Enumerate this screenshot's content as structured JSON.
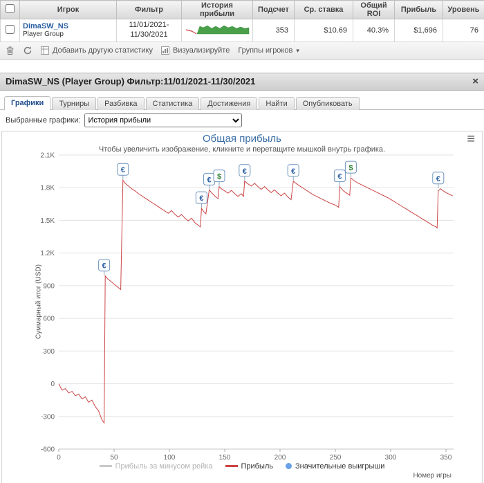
{
  "table": {
    "headers": [
      "Игрок",
      "Фильтр",
      "История прибыли",
      "Подсчет",
      "Ср. ставка",
      "Общий ROI",
      "Прибыль",
      "Уровень"
    ],
    "row": {
      "player_name": "DimaSW_NS",
      "player_type": "Player Group",
      "filter_from": "11/01/2021-",
      "filter_to": "11/30/2021",
      "count": "353",
      "avg_stake": "$10.69",
      "total_roi": "40.3%",
      "profit": "$1,696",
      "level": "76"
    }
  },
  "toolbar": {
    "add_statistic": "Добавить другую статистику",
    "visualize": "Визуализируйте",
    "player_groups": "Группы игроков",
    "dropdown_arrow": "▾"
  },
  "panel": {
    "title": "DimaSW_NS (Player Group) Фильтр:11/01/2021-11/30/2021",
    "close": "×",
    "tabs": [
      {
        "label": "Графики",
        "active": true
      },
      {
        "label": "Турниры",
        "active": false
      },
      {
        "label": "Разбивка",
        "active": false
      },
      {
        "label": "Статистика",
        "active": false
      },
      {
        "label": "Достижения",
        "active": false
      },
      {
        "label": "Найти",
        "active": false
      },
      {
        "label": "Опубликовать",
        "active": false
      }
    ],
    "selector_label": "Выбранные графики:",
    "selector_value": "История прибыли"
  },
  "chart_data": {
    "type": "line",
    "title": "Общая прибыль",
    "subtitle": "Чтобы увеличить изображение, кликните и перетащите мышкой внутрь графика.",
    "ylabel": "Суммарный итог (USD)",
    "xlabel": "Номер игры",
    "menu_icon": "≡",
    "grid": "horizontal",
    "legend_position": "bottom",
    "xlim": [
      0,
      360
    ],
    "ylim": [
      -600,
      2200
    ],
    "yticks": [
      "2.1K",
      "1.8K",
      "1.5K",
      "1.2K",
      "900",
      "600",
      "300",
      "0",
      "-300",
      "-600"
    ],
    "ytick_values": [
      2100,
      1800,
      1500,
      1200,
      900,
      600,
      300,
      0,
      -300,
      -600
    ],
    "xticks": [
      0,
      50,
      100,
      150,
      200,
      250,
      300,
      350
    ],
    "marker_colors": {
      "€": "#2b5fa3",
      "$": "#2e7d32"
    },
    "legend": [
      {
        "label": "Прибыль за минусом рейка",
        "color": "#c9c9c9",
        "type": "line",
        "disabled": true
      },
      {
        "label": "Прибыль",
        "color": "#cc4444",
        "type": "line",
        "disabled": false
      },
      {
        "label": "Значительные выигрыши",
        "color": "#6aa2e8",
        "type": "dot",
        "disabled": false
      }
    ],
    "series": [
      {
        "name": "Прибыль",
        "color": "#cc4444",
        "points": [
          [
            0,
            0
          ],
          [
            3,
            -60
          ],
          [
            6,
            -45
          ],
          [
            9,
            -85
          ],
          [
            12,
            -70
          ],
          [
            15,
            -110
          ],
          [
            18,
            -95
          ],
          [
            21,
            -140
          ],
          [
            24,
            -120
          ],
          [
            27,
            -170
          ],
          [
            30,
            -150
          ],
          [
            33,
            -210
          ],
          [
            36,
            -250
          ],
          [
            39,
            -330
          ],
          [
            41,
            -360
          ],
          [
            42,
            990
          ],
          [
            44,
            965
          ],
          [
            47,
            940
          ],
          [
            50,
            915
          ],
          [
            53,
            890
          ],
          [
            56,
            865
          ],
          [
            58,
            1870
          ],
          [
            60,
            1840
          ],
          [
            63,
            1815
          ],
          [
            66,
            1790
          ],
          [
            69,
            1770
          ],
          [
            72,
            1745
          ],
          [
            75,
            1725
          ],
          [
            78,
            1705
          ],
          [
            81,
            1685
          ],
          [
            84,
            1665
          ],
          [
            87,
            1645
          ],
          [
            90,
            1625
          ],
          [
            93,
            1605
          ],
          [
            96,
            1585
          ],
          [
            99,
            1565
          ],
          [
            102,
            1590
          ],
          [
            105,
            1555
          ],
          [
            108,
            1530
          ],
          [
            111,
            1555
          ],
          [
            114,
            1520
          ],
          [
            117,
            1495
          ],
          [
            120,
            1520
          ],
          [
            123,
            1480
          ],
          [
            126,
            1455
          ],
          [
            128,
            1440
          ],
          [
            129,
            1610
          ],
          [
            131,
            1580
          ],
          [
            133,
            1560
          ],
          [
            136,
            1780
          ],
          [
            138,
            1755
          ],
          [
            140,
            1735
          ],
          [
            142,
            1715
          ],
          [
            144,
            1700
          ],
          [
            145,
            1810
          ],
          [
            147,
            1790
          ],
          [
            150,
            1770
          ],
          [
            153,
            1750
          ],
          [
            156,
            1775
          ],
          [
            159,
            1745
          ],
          [
            162,
            1720
          ],
          [
            165,
            1745
          ],
          [
            167,
            1720
          ],
          [
            168,
            1860
          ],
          [
            171,
            1835
          ],
          [
            174,
            1815
          ],
          [
            177,
            1840
          ],
          [
            180,
            1810
          ],
          [
            183,
            1785
          ],
          [
            186,
            1810
          ],
          [
            189,
            1780
          ],
          [
            192,
            1755
          ],
          [
            195,
            1780
          ],
          [
            198,
            1750
          ],
          [
            201,
            1725
          ],
          [
            204,
            1750
          ],
          [
            207,
            1715
          ],
          [
            210,
            1690
          ],
          [
            212,
            1860
          ],
          [
            215,
            1835
          ],
          [
            218,
            1815
          ],
          [
            221,
            1795
          ],
          [
            224,
            1775
          ],
          [
            227,
            1755
          ],
          [
            230,
            1735
          ],
          [
            234,
            1715
          ],
          [
            238,
            1695
          ],
          [
            242,
            1675
          ],
          [
            246,
            1655
          ],
          [
            250,
            1640
          ],
          [
            253,
            1620
          ],
          [
            254,
            1810
          ],
          [
            256,
            1785
          ],
          [
            258,
            1765
          ],
          [
            261,
            1745
          ],
          [
            263,
            1730
          ],
          [
            264,
            1890
          ],
          [
            267,
            1865
          ],
          [
            270,
            1845
          ],
          [
            274,
            1825
          ],
          [
            278,
            1805
          ],
          [
            282,
            1785
          ],
          [
            286,
            1765
          ],
          [
            290,
            1745
          ],
          [
            294,
            1725
          ],
          [
            298,
            1705
          ],
          [
            302,
            1680
          ],
          [
            306,
            1655
          ],
          [
            310,
            1630
          ],
          [
            314,
            1605
          ],
          [
            318,
            1580
          ],
          [
            322,
            1555
          ],
          [
            326,
            1530
          ],
          [
            330,
            1505
          ],
          [
            334,
            1480
          ],
          [
            338,
            1455
          ],
          [
            341,
            1440
          ],
          [
            342,
            1430
          ],
          [
            343,
            1770
          ],
          [
            345,
            1790
          ],
          [
            347,
            1775
          ],
          [
            350,
            1755
          ],
          [
            353,
            1740
          ],
          [
            356,
            1725
          ]
        ]
      }
    ],
    "markers": [
      {
        "x": 41,
        "y": 990,
        "label": "€"
      },
      {
        "x": 58,
        "y": 1870,
        "label": "€"
      },
      {
        "x": 129,
        "y": 1610,
        "label": "€"
      },
      {
        "x": 136,
        "y": 1780,
        "label": "€"
      },
      {
        "x": 145,
        "y": 1810,
        "label": "$"
      },
      {
        "x": 168,
        "y": 1860,
        "label": "€"
      },
      {
        "x": 212,
        "y": 1860,
        "label": "€"
      },
      {
        "x": 254,
        "y": 1810,
        "label": "€"
      },
      {
        "x": 264,
        "y": 1890,
        "label": "$"
      },
      {
        "x": 343,
        "y": 1790,
        "label": "€"
      }
    ]
  }
}
